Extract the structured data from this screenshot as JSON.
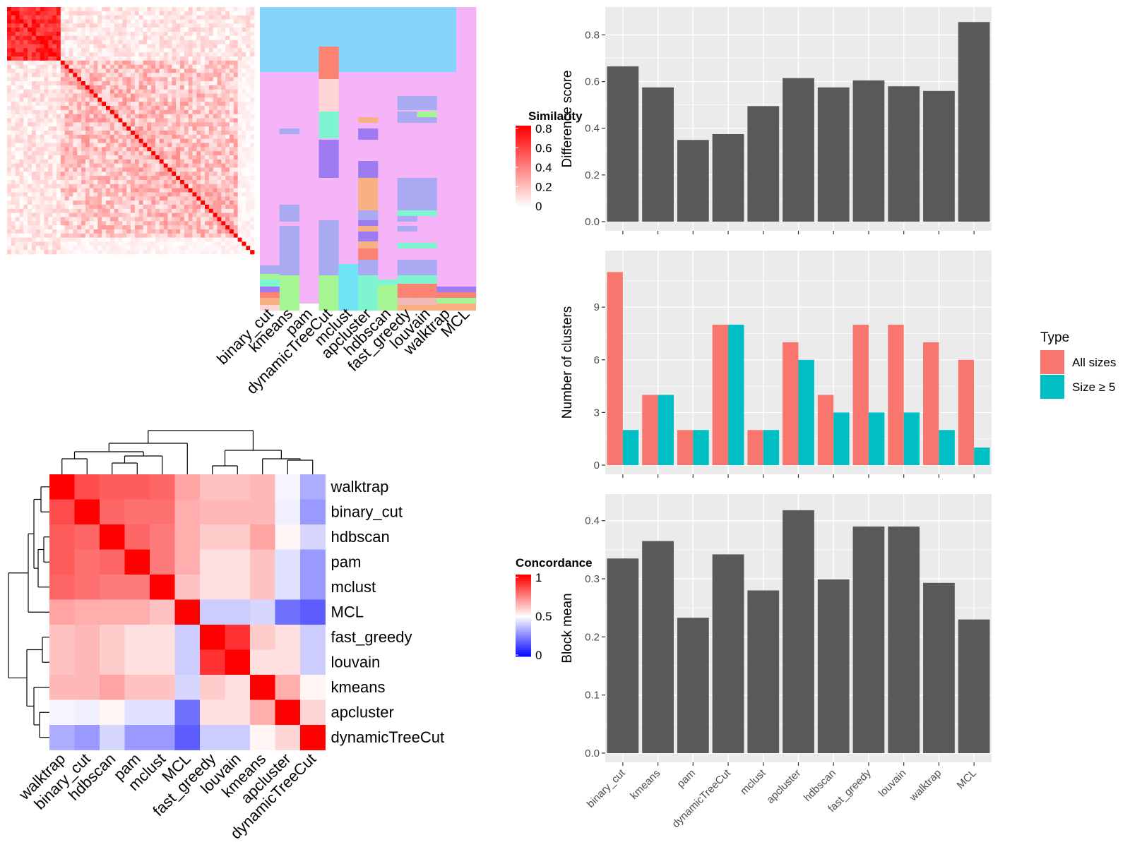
{
  "methods": [
    "binary_cut",
    "kmeans",
    "pam",
    "dynamicTreeCut",
    "mclust",
    "apcluster",
    "hdbscan",
    "fast_greedy",
    "louvain",
    "walktrap",
    "MCL"
  ],
  "colors": {
    "bar_dark": "#595959",
    "panel_bg": "#ebebeb",
    "all_sizes": "#f8766d",
    "size_ge5": "#00bfc4",
    "sim_high": "#ff0000",
    "conc_low": "#0000ff",
    "classes": [
      "#87d4fa",
      "#f5b3f8",
      "#aaaaf2",
      "#fa8374",
      "#7ef5d0",
      "#a6f593",
      "#f7b182",
      "#9f7bf2",
      "#f2b9b9",
      "#ffd5d5",
      "#70e3f5"
    ]
  },
  "similarity_legend": {
    "title": "Similarity",
    "ticks": [
      "0.8",
      "0.6",
      "0.4",
      "0.2",
      "0"
    ]
  },
  "concordance_legend": {
    "title": "Concordance",
    "ticks": [
      "1",
      "0.5",
      "0"
    ]
  },
  "type_legend": {
    "title": "Type",
    "items": [
      "All sizes",
      "Size ≥ 5"
    ]
  },
  "concordance_order": [
    "walktrap",
    "binary_cut",
    "hdbscan",
    "pam",
    "mclust",
    "MCL",
    "fast_greedy",
    "louvain",
    "kmeans",
    "apcluster",
    "dynamicTreeCut"
  ],
  "concordance_matrix": [
    [
      1.0,
      0.85,
      0.82,
      0.82,
      0.8,
      0.68,
      0.62,
      0.62,
      0.64,
      0.48,
      0.34
    ],
    [
      0.85,
      1.0,
      0.8,
      0.78,
      0.78,
      0.66,
      0.64,
      0.64,
      0.64,
      0.47,
      0.3
    ],
    [
      0.82,
      0.8,
      1.0,
      0.8,
      0.76,
      0.66,
      0.6,
      0.6,
      0.68,
      0.52,
      0.42
    ],
    [
      0.82,
      0.78,
      0.8,
      1.0,
      0.76,
      0.66,
      0.56,
      0.56,
      0.62,
      0.44,
      0.3
    ],
    [
      0.8,
      0.78,
      0.76,
      0.76,
      1.0,
      0.62,
      0.56,
      0.56,
      0.62,
      0.44,
      0.3
    ],
    [
      0.68,
      0.66,
      0.66,
      0.66,
      0.62,
      1.0,
      0.4,
      0.4,
      0.42,
      0.22,
      0.18
    ],
    [
      0.62,
      0.64,
      0.6,
      0.56,
      0.56,
      0.4,
      1.0,
      0.9,
      0.6,
      0.56,
      0.4
    ],
    [
      0.62,
      0.64,
      0.6,
      0.56,
      0.56,
      0.4,
      0.9,
      1.0,
      0.56,
      0.56,
      0.4
    ],
    [
      0.64,
      0.64,
      0.68,
      0.62,
      0.62,
      0.42,
      0.6,
      0.56,
      1.0,
      0.66,
      0.52
    ],
    [
      0.48,
      0.47,
      0.52,
      0.44,
      0.44,
      0.22,
      0.56,
      0.56,
      0.66,
      1.0,
      0.58
    ],
    [
      0.34,
      0.3,
      0.42,
      0.3,
      0.3,
      0.18,
      0.4,
      0.4,
      0.52,
      0.58,
      1.0
    ]
  ],
  "chart_data": [
    {
      "type": "bar",
      "categories": [
        "binary_cut",
        "kmeans",
        "pam",
        "dynamicTreeCut",
        "mclust",
        "apcluster",
        "hdbscan",
        "fast_greedy",
        "louvain",
        "walktrap",
        "MCL"
      ],
      "values": [
        0.665,
        0.575,
        0.35,
        0.375,
        0.495,
        0.615,
        0.575,
        0.605,
        0.58,
        0.56,
        0.855
      ],
      "ylabel": "Difference score",
      "ylim": [
        0,
        0.88
      ],
      "yticks": [
        "0.0",
        "0.2",
        "0.4",
        "0.6",
        "0.8"
      ]
    },
    {
      "type": "bar",
      "categories": [
        "binary_cut",
        "kmeans",
        "pam",
        "dynamicTreeCut",
        "mclust",
        "apcluster",
        "hdbscan",
        "fast_greedy",
        "louvain",
        "walktrap",
        "MCL"
      ],
      "series": [
        {
          "name": "All sizes",
          "values": [
            11,
            4,
            2,
            8,
            2,
            7,
            4,
            8,
            8,
            7,
            6
          ]
        },
        {
          "name": "Size ≥ 5",
          "values": [
            2,
            4,
            2,
            8,
            2,
            6,
            3,
            3,
            3,
            2,
            1
          ]
        }
      ],
      "ylabel": "Number of clusters",
      "ylim": [
        0,
        11.7
      ],
      "yticks": [
        "0",
        "3",
        "6",
        "9"
      ]
    },
    {
      "type": "bar",
      "categories": [
        "binary_cut",
        "kmeans",
        "pam",
        "dynamicTreeCut",
        "mclust",
        "apcluster",
        "hdbscan",
        "fast_greedy",
        "louvain",
        "walktrap",
        "MCL"
      ],
      "values": [
        0.335,
        0.365,
        0.233,
        0.342,
        0.28,
        0.418,
        0.299,
        0.39,
        0.39,
        0.293,
        0.23
      ],
      "ylabel": "Block mean",
      "ylim": [
        0,
        0.43
      ],
      "yticks": [
        "0.0",
        "0.1",
        "0.2",
        "0.3",
        "0.4"
      ]
    }
  ]
}
